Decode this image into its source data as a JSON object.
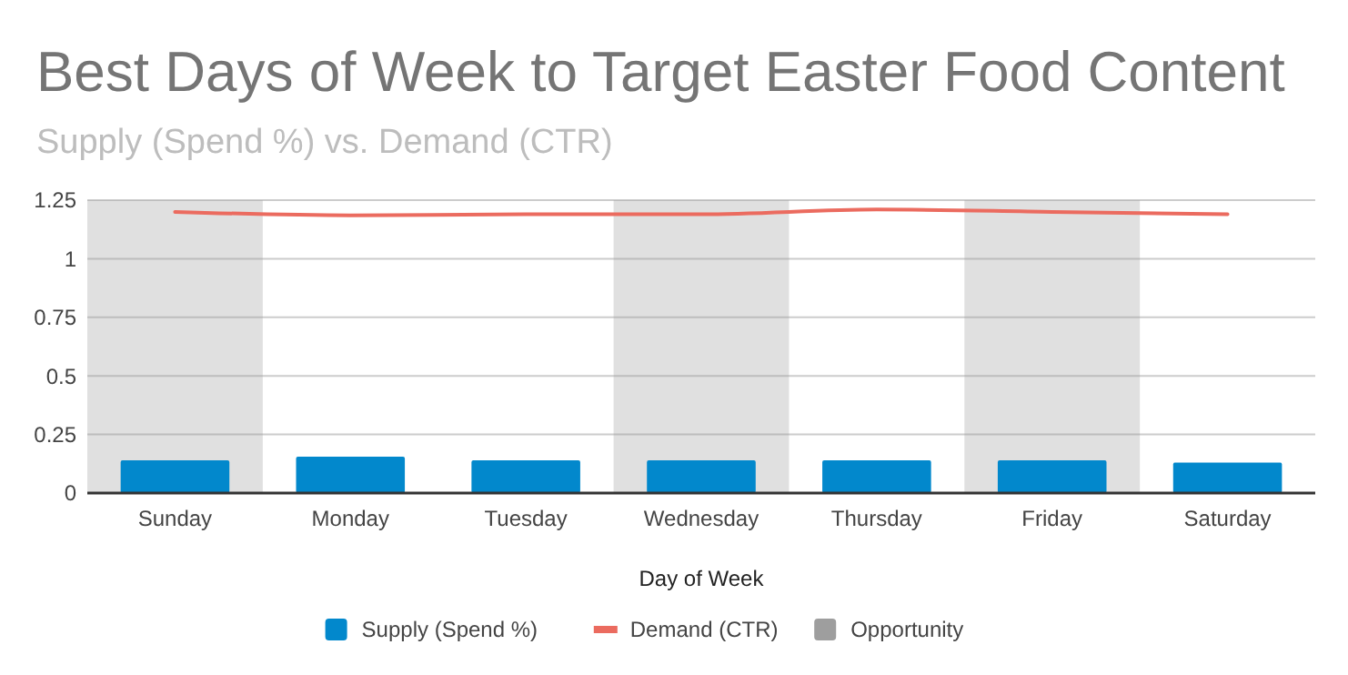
{
  "chart_data": {
    "type": "bar",
    "title": "Best Days of Week to Target Easter Food Content",
    "subtitle": "Supply (Spend %) vs. Demand (CTR)",
    "xlabel": "Day of Week",
    "categories": [
      "Sunday",
      "Monday",
      "Tuesday",
      "Wednesday",
      "Thursday",
      "Friday",
      "Saturday"
    ],
    "series": [
      {
        "name": "Supply (Spend %)",
        "color": "#0288cc",
        "values": [
          0.14,
          0.155,
          0.14,
          0.14,
          0.14,
          0.14,
          0.13
        ]
      },
      {
        "name": "Demand (CTR)",
        "type": "line",
        "color": "#eb6b5f",
        "values": [
          1.2,
          1.185,
          1.19,
          1.19,
          1.21,
          1.2,
          1.19
        ]
      },
      {
        "name": "Opportunity",
        "type": "bar",
        "color": "#9e9e9e",
        "values": [
          1.25,
          null,
          null,
          1.25,
          null,
          1.25,
          null
        ]
      }
    ],
    "ylim": [
      0,
      1.25
    ],
    "yticks": [
      0,
      0.25,
      0.5,
      0.75,
      1,
      1.25
    ],
    "grid": "y",
    "legend": "bottom"
  }
}
